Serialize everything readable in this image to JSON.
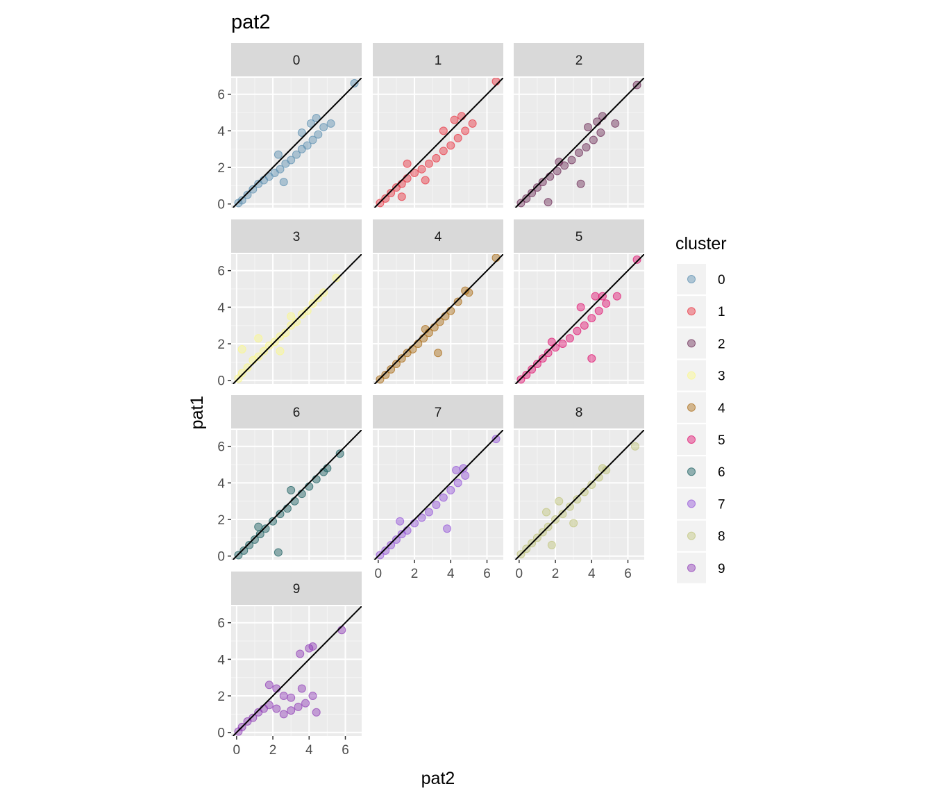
{
  "chart_data": {
    "type": "scatter",
    "title": "pat2",
    "xlabel": "pat2",
    "ylabel": "pat1",
    "xlim": [
      -0.3,
      6.9
    ],
    "ylim": [
      -0.2,
      6.9
    ],
    "x_ticks": [
      0,
      2,
      4,
      6
    ],
    "y_ticks": [
      0,
      2,
      4,
      6
    ],
    "facet_by": "cluster",
    "facets": [
      "0",
      "1",
      "2",
      "3",
      "4",
      "5",
      "6",
      "7",
      "8",
      "9"
    ],
    "grid": true,
    "reference_line": "y = x",
    "legend": {
      "title": "cluster",
      "position": "right",
      "entries": [
        "0",
        "1",
        "2",
        "3",
        "4",
        "5",
        "6",
        "7",
        "8",
        "9"
      ]
    },
    "series": [
      {
        "cluster": "0",
        "color": "#5a8fb0",
        "points": [
          [
            0.1,
            0.05
          ],
          [
            0.3,
            0.2
          ],
          [
            0.6,
            0.5
          ],
          [
            0.9,
            0.8
          ],
          [
            1.2,
            1.1
          ],
          [
            1.5,
            1.3
          ],
          [
            1.8,
            1.5
          ],
          [
            2.1,
            1.7
          ],
          [
            2.4,
            1.9
          ],
          [
            2.7,
            2.2
          ],
          [
            3.0,
            2.4
          ],
          [
            3.3,
            2.7
          ],
          [
            3.6,
            3.0
          ],
          [
            3.9,
            3.2
          ],
          [
            4.2,
            3.5
          ],
          [
            4.5,
            3.8
          ],
          [
            4.8,
            4.2
          ],
          [
            3.6,
            3.9
          ],
          [
            4.1,
            4.4
          ],
          [
            4.4,
            4.7
          ],
          [
            5.2,
            4.4
          ],
          [
            2.6,
            1.2
          ],
          [
            2.3,
            2.7
          ],
          [
            6.5,
            6.6
          ]
        ]
      },
      {
        "cluster": "1",
        "color": "#e8313f",
        "points": [
          [
            0.1,
            0.05
          ],
          [
            0.4,
            0.3
          ],
          [
            0.7,
            0.6
          ],
          [
            1.0,
            0.9
          ],
          [
            1.3,
            1.1
          ],
          [
            1.6,
            1.4
          ],
          [
            2.0,
            1.7
          ],
          [
            2.4,
            1.9
          ],
          [
            2.8,
            2.2
          ],
          [
            3.2,
            2.5
          ],
          [
            3.6,
            2.9
          ],
          [
            4.0,
            3.2
          ],
          [
            4.4,
            3.6
          ],
          [
            4.8,
            4.0
          ],
          [
            3.6,
            4.0
          ],
          [
            4.2,
            4.6
          ],
          [
            4.6,
            4.8
          ],
          [
            5.2,
            4.4
          ],
          [
            1.6,
            2.2
          ],
          [
            2.6,
            1.3
          ],
          [
            1.3,
            0.4
          ],
          [
            6.5,
            6.7
          ]
        ]
      },
      {
        "cluster": "2",
        "color": "#6b2a55",
        "points": [
          [
            0.1,
            0.05
          ],
          [
            0.4,
            0.3
          ],
          [
            0.7,
            0.6
          ],
          [
            1.0,
            0.9
          ],
          [
            1.3,
            1.2
          ],
          [
            1.7,
            1.5
          ],
          [
            2.1,
            1.8
          ],
          [
            2.5,
            2.1
          ],
          [
            2.9,
            2.4
          ],
          [
            3.3,
            2.8
          ],
          [
            3.7,
            3.1
          ],
          [
            4.1,
            3.5
          ],
          [
            4.5,
            3.9
          ],
          [
            3.8,
            4.2
          ],
          [
            4.3,
            4.5
          ],
          [
            4.6,
            4.8
          ],
          [
            5.3,
            4.4
          ],
          [
            3.4,
            1.1
          ],
          [
            1.6,
            0.1
          ],
          [
            2.2,
            2.3
          ],
          [
            6.5,
            6.5
          ]
        ]
      },
      {
        "cluster": "3",
        "color": "#fbf889",
        "points": [
          [
            0.1,
            0.1
          ],
          [
            0.3,
            0.4
          ],
          [
            0.6,
            0.7
          ],
          [
            0.9,
            1.1
          ],
          [
            1.2,
            1.3
          ],
          [
            1.5,
            1.6
          ],
          [
            1.8,
            1.9
          ],
          [
            2.1,
            2.1
          ],
          [
            2.4,
            2.4
          ],
          [
            2.7,
            2.6
          ],
          [
            3.0,
            3.0
          ],
          [
            3.3,
            3.2
          ],
          [
            3.6,
            3.6
          ],
          [
            3.9,
            3.8
          ],
          [
            4.2,
            4.2
          ],
          [
            4.5,
            4.5
          ],
          [
            4.8,
            4.8
          ],
          [
            0.3,
            1.7
          ],
          [
            1.2,
            2.3
          ],
          [
            2.4,
            1.6
          ],
          [
            3.0,
            3.5
          ],
          [
            5.5,
            5.6
          ]
        ]
      },
      {
        "cluster": "4",
        "color": "#a96a12",
        "points": [
          [
            0.1,
            0.05
          ],
          [
            0.4,
            0.3
          ],
          [
            0.7,
            0.6
          ],
          [
            1.0,
            0.9
          ],
          [
            1.3,
            1.2
          ],
          [
            1.6,
            1.5
          ],
          [
            1.9,
            1.7
          ],
          [
            2.2,
            2.0
          ],
          [
            2.5,
            2.3
          ],
          [
            2.8,
            2.6
          ],
          [
            3.1,
            2.9
          ],
          [
            3.4,
            3.2
          ],
          [
            3.7,
            3.5
          ],
          [
            4.0,
            3.8
          ],
          [
            4.4,
            4.3
          ],
          [
            4.8,
            4.9
          ],
          [
            5.0,
            4.8
          ],
          [
            2.6,
            2.8
          ],
          [
            3.3,
            1.5
          ],
          [
            6.5,
            6.7
          ]
        ]
      },
      {
        "cluster": "5",
        "color": "#e0106e",
        "points": [
          [
            0.1,
            0.05
          ],
          [
            0.4,
            0.3
          ],
          [
            0.7,
            0.6
          ],
          [
            1.0,
            0.9
          ],
          [
            1.3,
            1.2
          ],
          [
            1.6,
            1.5
          ],
          [
            2.0,
            1.8
          ],
          [
            2.4,
            2.0
          ],
          [
            2.8,
            2.3
          ],
          [
            3.2,
            2.7
          ],
          [
            3.6,
            3.0
          ],
          [
            4.0,
            3.4
          ],
          [
            4.4,
            3.8
          ],
          [
            4.8,
            4.2
          ],
          [
            3.4,
            4.0
          ],
          [
            4.2,
            4.6
          ],
          [
            4.6,
            4.6
          ],
          [
            5.4,
            4.6
          ],
          [
            1.8,
            2.1
          ],
          [
            4.0,
            1.2
          ],
          [
            6.5,
            6.6
          ]
        ]
      },
      {
        "cluster": "6",
        "color": "#195e5f",
        "points": [
          [
            0.1,
            0.05
          ],
          [
            0.4,
            0.3
          ],
          [
            0.7,
            0.6
          ],
          [
            1.0,
            0.9
          ],
          [
            1.3,
            1.2
          ],
          [
            1.6,
            1.5
          ],
          [
            2.0,
            1.9
          ],
          [
            2.4,
            2.3
          ],
          [
            2.8,
            2.6
          ],
          [
            3.2,
            3.0
          ],
          [
            3.6,
            3.4
          ],
          [
            4.0,
            3.8
          ],
          [
            4.4,
            4.2
          ],
          [
            4.8,
            4.6
          ],
          [
            5.0,
            4.8
          ],
          [
            3.0,
            3.6
          ],
          [
            2.3,
            0.2
          ],
          [
            1.2,
            1.6
          ],
          [
            5.7,
            5.6
          ]
        ]
      },
      {
        "cluster": "7",
        "color": "#9351d8",
        "points": [
          [
            0.1,
            0.05
          ],
          [
            0.4,
            0.3
          ],
          [
            0.7,
            0.6
          ],
          [
            1.0,
            0.9
          ],
          [
            1.3,
            1.2
          ],
          [
            1.6,
            1.4
          ],
          [
            2.0,
            1.8
          ],
          [
            2.4,
            2.1
          ],
          [
            2.8,
            2.4
          ],
          [
            3.2,
            2.8
          ],
          [
            3.6,
            3.2
          ],
          [
            4.0,
            3.6
          ],
          [
            4.4,
            4.0
          ],
          [
            4.8,
            4.4
          ],
          [
            4.3,
            4.7
          ],
          [
            4.7,
            4.8
          ],
          [
            1.2,
            1.9
          ],
          [
            3.8,
            1.5
          ],
          [
            6.5,
            6.4
          ]
        ]
      },
      {
        "cluster": "8",
        "color": "#c1c57c",
        "points": [
          [
            0.1,
            0.1
          ],
          [
            0.4,
            0.4
          ],
          [
            0.7,
            0.7
          ],
          [
            1.0,
            1.0
          ],
          [
            1.3,
            1.3
          ],
          [
            1.6,
            1.6
          ],
          [
            2.0,
            2.0
          ],
          [
            2.4,
            2.3
          ],
          [
            2.8,
            2.7
          ],
          [
            3.2,
            3.1
          ],
          [
            3.6,
            3.5
          ],
          [
            4.0,
            3.9
          ],
          [
            4.4,
            4.3
          ],
          [
            4.8,
            4.7
          ],
          [
            1.5,
            2.4
          ],
          [
            2.2,
            3.0
          ],
          [
            1.8,
            0.6
          ],
          [
            3.0,
            1.8
          ],
          [
            4.6,
            4.8
          ],
          [
            6.4,
            6.0
          ]
        ]
      },
      {
        "cluster": "9",
        "color": "#8e3ab6",
        "points": [
          [
            0.1,
            0.05
          ],
          [
            0.3,
            0.3
          ],
          [
            0.6,
            0.6
          ],
          [
            0.9,
            0.8
          ],
          [
            1.2,
            1.1
          ],
          [
            1.5,
            1.3
          ],
          [
            1.8,
            1.5
          ],
          [
            2.2,
            1.3
          ],
          [
            2.6,
            1.0
          ],
          [
            3.0,
            1.2
          ],
          [
            3.4,
            1.4
          ],
          [
            3.8,
            1.6
          ],
          [
            2.2,
            2.4
          ],
          [
            2.6,
            2.0
          ],
          [
            3.0,
            1.9
          ],
          [
            3.6,
            2.4
          ],
          [
            3.5,
            4.3
          ],
          [
            4.0,
            4.6
          ],
          [
            4.2,
            4.7
          ],
          [
            4.2,
            2.0
          ],
          [
            4.4,
            1.1
          ],
          [
            1.8,
            2.6
          ],
          [
            5.8,
            5.6
          ]
        ]
      }
    ]
  }
}
